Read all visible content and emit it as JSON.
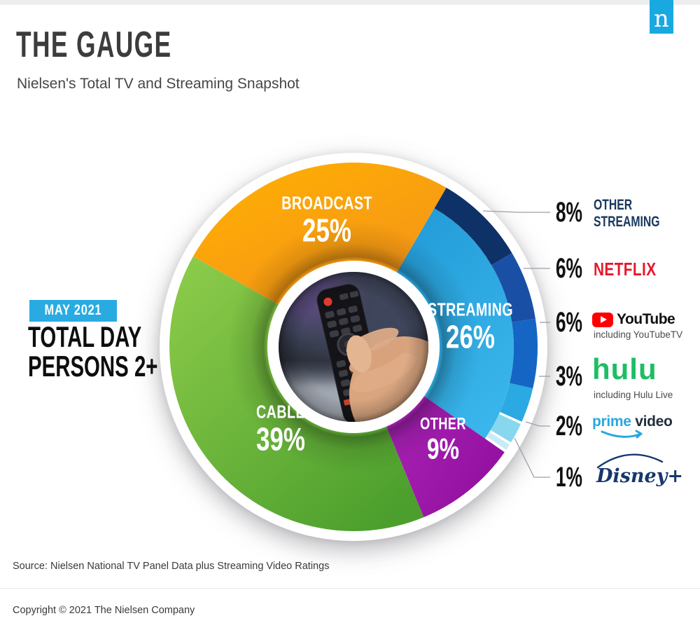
{
  "header": {
    "title": "THE GAUGE",
    "subtitle": "Nielsen's Total TV and Streaming Snapshot"
  },
  "logo": {
    "letter": "n",
    "bg": "#18A9E0"
  },
  "period_badge": {
    "label": "MAY 2021",
    "bg": "#29ABE2"
  },
  "audience": {
    "line1": "TOTAL DAY",
    "line2": "PERSONS 2+"
  },
  "chart_data": {
    "type": "pie",
    "title": "The Gauge — Nielsen's Total TV and Streaming Snapshot, May 2021, Total Day, Persons 2+",
    "units": "percent share of total TV time",
    "start_angle_deg": 299.4,
    "segments": [
      {
        "label": "BROADCAST",
        "value": 25,
        "pct": "25%",
        "color": "#FFAF03",
        "color2": "#F28E1E"
      },
      {
        "label": "STREAMING",
        "value": 26,
        "pct": "26%",
        "color": "#1E96D3",
        "color2": "#3BB8ED"
      },
      {
        "label": "OTHER",
        "value": 9,
        "pct": "9%",
        "color": "#B62CC1",
        "color2": "#92109F"
      },
      {
        "label": "CABLE",
        "value": 39,
        "pct": "39%",
        "color": "#8FCD4B",
        "color2": "#4C9F2D"
      }
    ],
    "streaming_breakdown": [
      {
        "label": "Other Streaming",
        "value": 8,
        "pct": "8%",
        "color": "#0E3168"
      },
      {
        "label": "Netflix",
        "value": 6,
        "pct": "6%",
        "color": "#1A4FA6"
      },
      {
        "label": "YouTube",
        "value": 6,
        "pct": "6%",
        "sub": "including YouTubeTV",
        "color": "#1565C4"
      },
      {
        "label": "Hulu",
        "value": 3,
        "pct": "3%",
        "sub": "including Hulu Live",
        "color": "#2AA9E2"
      },
      {
        "label": "Prime Video",
        "value": 2,
        "pct": "2%",
        "color": "#87D7EF"
      },
      {
        "label": "Disney+",
        "value": 1,
        "pct": "1%",
        "color": "#C9EBF7"
      }
    ]
  },
  "legend": {
    "rows": [
      {
        "pct": "8%",
        "line1": "OTHER",
        "line2": "STREAMING"
      },
      {
        "pct": "6%",
        "brand": "NETFLIX"
      },
      {
        "pct": "6%",
        "brand": "YouTube",
        "sub": "including YouTubeTV"
      },
      {
        "pct": "3%",
        "brand": "hulu",
        "sub": "including Hulu Live"
      },
      {
        "pct": "2%",
        "brand_a": "prime",
        "brand_b": "video"
      },
      {
        "pct": "1%",
        "brand": "Disney+"
      }
    ]
  },
  "footer": {
    "source": "Source: Nielsen National TV Panel Data plus Streaming Video Ratings",
    "copyright": "Copyright © 2021 The Nielsen Company"
  }
}
